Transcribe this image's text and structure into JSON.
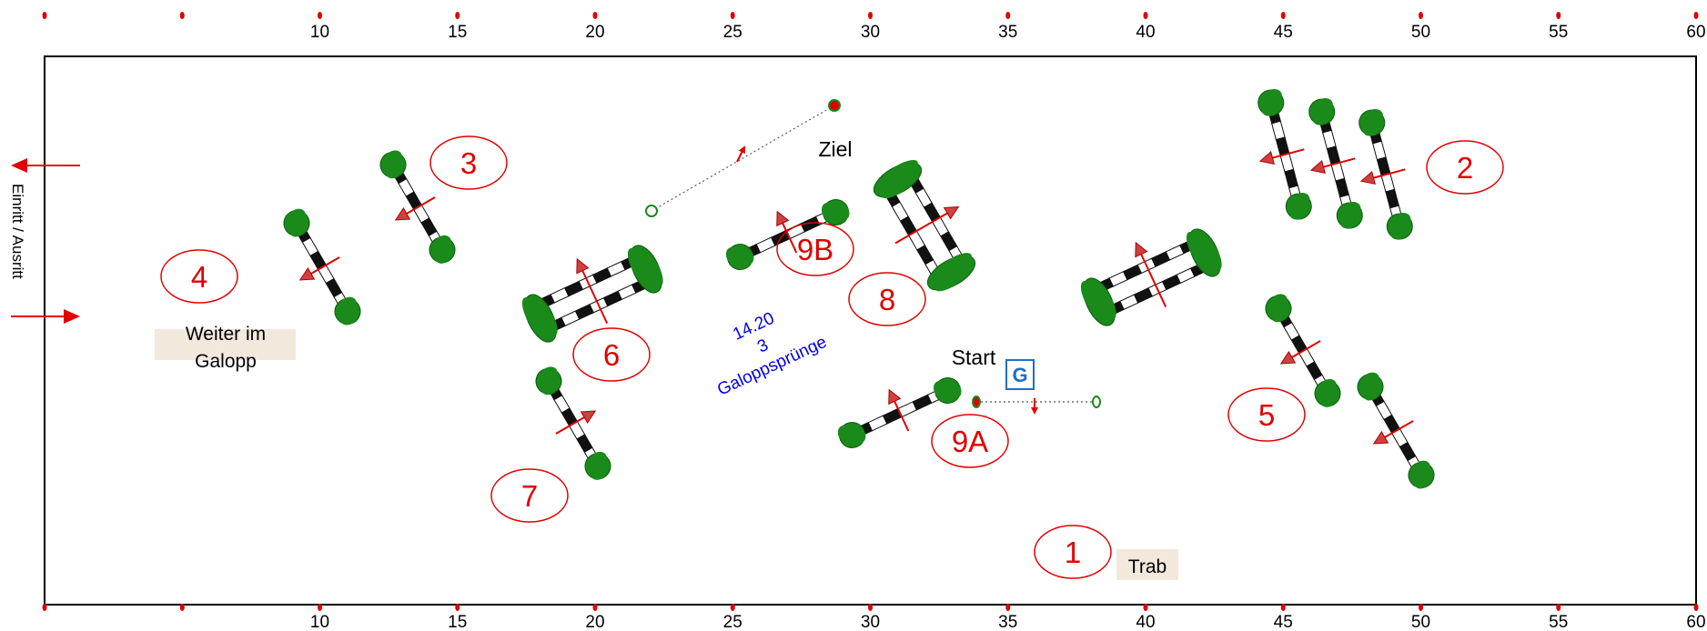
{
  "ruler": {
    "ticks": [
      0,
      5,
      10,
      15,
      20,
      25,
      30,
      35,
      40,
      45,
      50,
      55,
      60
    ],
    "labels": [
      "",
      "",
      "10",
      "15",
      "20",
      "25",
      "30",
      "35",
      "40",
      "45",
      "50",
      "55",
      "60"
    ]
  },
  "entrance_label": "Einritt / Ausritt",
  "start_label": "Start",
  "finish_label": "Ziel",
  "g_label": "G",
  "trot_label": "Trab",
  "canter_label_line1": "Weiter im",
  "canter_label_line2": "Galopp",
  "note": {
    "line1": "14.20",
    "line2": "3",
    "line3": "Galoppsprünge"
  },
  "jumps": {
    "j1": "1",
    "j2": "2",
    "j3": "3",
    "j4": "4",
    "j5": "5",
    "j6": "6",
    "j7": "7",
    "j8": "8",
    "j9a": "9A",
    "j9b": "9B"
  },
  "colors": {
    "number": "#e00000",
    "foliage": "#1a8a1a",
    "note": "#0000ee",
    "g_box": "#1e6ec8",
    "label_bg": "#f2e8dc"
  }
}
